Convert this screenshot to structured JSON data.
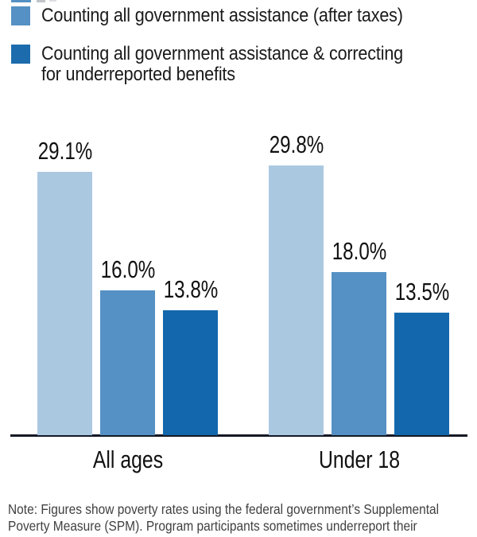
{
  "colors": {
    "light_blue": "#abc8e1",
    "medium_blue": "#5591c4",
    "dark_blue": "#1367ac",
    "axis_line": "#141824",
    "note_text": "#404040"
  },
  "legend": {
    "items": [
      {
        "swatch_color": "#5591c4",
        "lines": [
          "Counting all government assistance (after taxes)"
        ]
      },
      {
        "swatch_color": "#1c6cad",
        "lines": [
          "Counting all government assistance & correcting",
          "for underreported benefits"
        ]
      }
    ]
  },
  "chart_data": {
    "type": "bar",
    "categories": [
      "All ages",
      "Under 18"
    ],
    "series": [
      {
        "name": "",
        "color": "#abc8e1",
        "values": [
          29.1,
          29.8
        ]
      },
      {
        "name": "Counting all government assistance (after taxes)",
        "color": "#5591c4",
        "values": [
          16.0,
          18.0
        ]
      },
      {
        "name": "Counting all government assistance & correcting for underreported benefits",
        "color": "#1367ac",
        "values": [
          13.8,
          13.5
        ]
      }
    ],
    "value_label_format": "percent_one_decimal",
    "ylim": [
      0,
      35
    ],
    "grid": false,
    "legend_position": "top-left"
  },
  "note": {
    "lines": [
      "Note: Figures show poverty rates using the federal government’s Supplemental",
      "Poverty Measure (SPM). Program participants sometimes underreport their"
    ]
  }
}
